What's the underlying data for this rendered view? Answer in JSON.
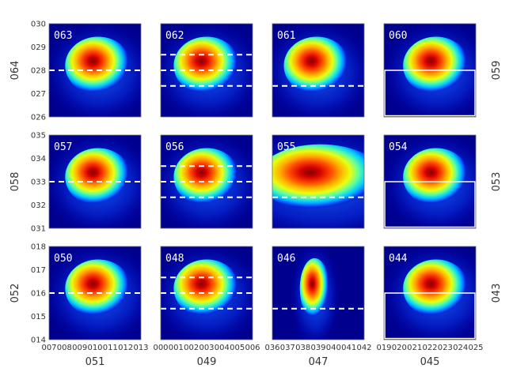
{
  "chart_data": {
    "type": "heatmap",
    "colormap": "jet",
    "background_color": "#00008f",
    "grid": false,
    "rows": [
      {
        "ylabel": "064",
        "right_label": "059",
        "yticks": [
          "026",
          "027",
          "028",
          "029",
          "030"
        ],
        "yrange": [
          0.26,
          0.3
        ],
        "blob": {
          "y": 0.2835,
          "sy": 0.004
        }
      },
      {
        "ylabel": "058",
        "right_label": "053",
        "yticks": [
          "031",
          "032",
          "033",
          "034",
          "035"
        ],
        "yrange": [
          0.31,
          0.35
        ],
        "blob": {
          "y": 0.3335,
          "sy": 0.004
        }
      },
      {
        "ylabel": "052",
        "right_label": "043",
        "yticks": [
          "014",
          "015",
          "016",
          "017",
          "018"
        ],
        "yrange": [
          0.14,
          0.18
        ],
        "blob": {
          "y": 0.1635,
          "sy": 0.004
        }
      }
    ],
    "columns": [
      {
        "xlabel": "051",
        "xticks": [
          "007",
          "008",
          "009",
          "010",
          "011",
          "012",
          "013"
        ],
        "xrange": [
          0.07,
          0.13
        ],
        "blob_x": 0.0995,
        "blob_sx": 0.006
      },
      {
        "xlabel": "049",
        "xticks": [
          "000",
          "001",
          "002",
          "003",
          "004",
          "005",
          "006"
        ],
        "xrange": [
          0.0,
          0.06
        ],
        "blob_x": 0.0275,
        "blob_sx": 0.006
      },
      {
        "xlabel": "047",
        "xticks": [
          "036",
          "037",
          "038",
          "039",
          "040",
          "041",
          "042"
        ],
        "xrange": [
          0.36,
          0.42
        ],
        "blob_x": 0.3865,
        "blob_sx": 0.006
      },
      {
        "xlabel": "045",
        "xticks": [
          "019",
          "020",
          "021",
          "022",
          "023",
          "024",
          "025"
        ],
        "xrange": [
          0.19,
          0.25
        ],
        "blob_x": 0.2215,
        "blob_sx": 0.006
      }
    ],
    "panels": [
      {
        "label": "063",
        "row": 0,
        "col": 0,
        "dashed_y": [
          0.28
        ]
      },
      {
        "label": "062",
        "row": 0,
        "col": 1,
        "dashed_y": [
          0.2867,
          0.28,
          0.2733
        ]
      },
      {
        "label": "061",
        "row": 0,
        "col": 2,
        "dashed_y": [
          0.2733
        ]
      },
      {
        "label": "060",
        "row": 0,
        "col": 3,
        "box_y": [
          0.2605,
          0.28
        ]
      },
      {
        "label": "057",
        "row": 1,
        "col": 0,
        "dashed_y": [
          0.33
        ]
      },
      {
        "label": "056",
        "row": 1,
        "col": 1,
        "dashed_y": [
          0.3367,
          0.33,
          0.3233
        ]
      },
      {
        "label": "055",
        "row": 1,
        "col": 2,
        "dashed_y": [
          0.3233
        ],
        "wide": true
      },
      {
        "label": "054",
        "row": 1,
        "col": 3,
        "box_y": [
          0.3105,
          0.33
        ]
      },
      {
        "label": "050",
        "row": 2,
        "col": 0,
        "dashed_y": [
          0.16
        ]
      },
      {
        "label": "048",
        "row": 2,
        "col": 1,
        "dashed_y": [
          0.1667,
          0.16,
          0.1533
        ]
      },
      {
        "label": "046",
        "row": 2,
        "col": 2,
        "dashed_y": [
          0.1533
        ],
        "narrow": true
      },
      {
        "label": "044",
        "row": 2,
        "col": 3,
        "box_y": [
          0.1405,
          0.16
        ]
      }
    ]
  }
}
